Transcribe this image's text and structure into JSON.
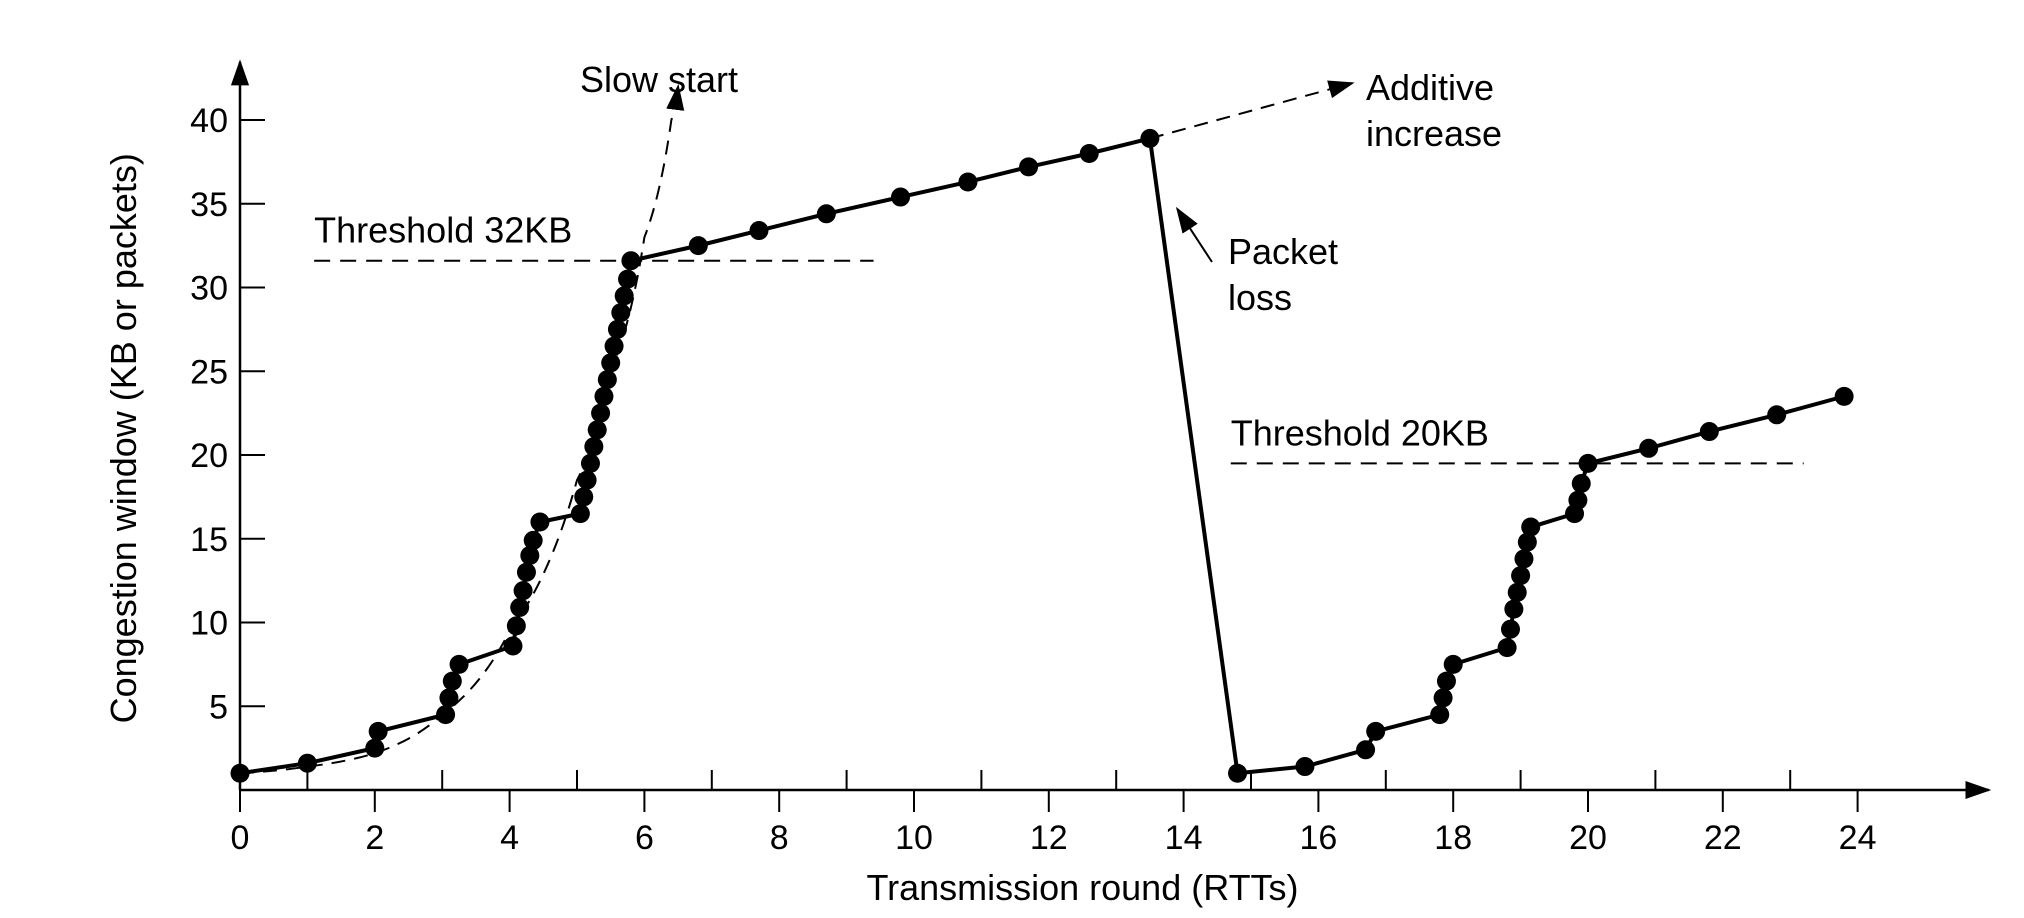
{
  "chart_data": {
    "type": "line",
    "xlabel": "Transmission round (RTTs)",
    "ylabel": "Congestion window (KB or packets)",
    "xlim": [
      0,
      25.5
    ],
    "ylim": [
      0,
      43
    ],
    "x_ticks": [
      0,
      2,
      4,
      6,
      8,
      10,
      12,
      14,
      16,
      18,
      20,
      22,
      24
    ],
    "x_minor_ticks": [
      1,
      3,
      5,
      7,
      9,
      11,
      13,
      15,
      17,
      19,
      21,
      23
    ],
    "y_ticks": [
      5,
      10,
      15,
      20,
      25,
      30,
      35,
      40
    ],
    "grid": false,
    "series": [
      {
        "points": [
          [
            0,
            1
          ],
          [
            1,
            1.6
          ],
          [
            2,
            2.5
          ],
          [
            2.05,
            3.5
          ],
          [
            3.05,
            4.5
          ],
          [
            3.1,
            5.5
          ],
          [
            3.15,
            6.5
          ],
          [
            3.25,
            7.5
          ],
          [
            4.05,
            8.6
          ],
          [
            4.1,
            9.8
          ],
          [
            4.15,
            10.9
          ],
          [
            4.2,
            11.9
          ],
          [
            4.25,
            13
          ],
          [
            4.3,
            14
          ],
          [
            4.35,
            14.9
          ],
          [
            4.45,
            16
          ],
          [
            5.05,
            16.5
          ],
          [
            5.1,
            17.5
          ],
          [
            5.15,
            18.5
          ],
          [
            5.2,
            19.5
          ],
          [
            5.25,
            20.5
          ],
          [
            5.3,
            21.5
          ],
          [
            5.35,
            22.5
          ],
          [
            5.4,
            23.5
          ],
          [
            5.45,
            24.5
          ],
          [
            5.5,
            25.5
          ],
          [
            5.55,
            26.5
          ],
          [
            5.6,
            27.5
          ],
          [
            5.65,
            28.5
          ],
          [
            5.7,
            29.5
          ],
          [
            5.75,
            30.5
          ],
          [
            5.8,
            31.6
          ],
          [
            6.8,
            32.5
          ],
          [
            7.7,
            33.4
          ],
          [
            8.7,
            34.4
          ],
          [
            9.8,
            35.4
          ],
          [
            10.8,
            36.3
          ],
          [
            11.7,
            37.2
          ],
          [
            12.6,
            38
          ],
          [
            13.5,
            38.9
          ],
          [
            14.8,
            1
          ],
          [
            15.8,
            1.4
          ],
          [
            16.7,
            2.4
          ],
          [
            16.85,
            3.5
          ],
          [
            17.8,
            4.5
          ],
          [
            17.85,
            5.5
          ],
          [
            17.9,
            6.5
          ],
          [
            18,
            7.5
          ],
          [
            18.8,
            8.5
          ],
          [
            18.85,
            9.6
          ],
          [
            18.9,
            10.8
          ],
          [
            18.95,
            11.8
          ],
          [
            19,
            12.8
          ],
          [
            19.05,
            13.8
          ],
          [
            19.1,
            14.8
          ],
          [
            19.15,
            15.7
          ],
          [
            19.8,
            16.5
          ],
          [
            19.85,
            17.3
          ],
          [
            19.9,
            18.3
          ],
          [
            20,
            19.5
          ],
          [
            20.9,
            20.4
          ],
          [
            21.8,
            21.4
          ],
          [
            22.8,
            22.4
          ],
          [
            23.8,
            23.5
          ]
        ]
      }
    ],
    "slow_start_curve": {
      "points": [
        [
          0,
          1
        ],
        [
          1,
          1.4
        ],
        [
          2,
          2.2
        ],
        [
          3,
          4.5
        ],
        [
          4,
          9.5
        ],
        [
          5,
          18.5
        ],
        [
          5.5,
          25
        ],
        [
          6,
          33
        ],
        [
          6.4,
          40
        ],
        [
          6.5,
          42
        ]
      ]
    },
    "additive_increase_extension": {
      "from": [
        13.5,
        38.9
      ],
      "to": [
        16.5,
        42.2
      ]
    },
    "thresholds": [
      {
        "label": "Threshold 32KB",
        "y": 31.6,
        "x_from": 1.1,
        "x_to": 9.4
      },
      {
        "label": "Threshold 20KB",
        "y": 19.5,
        "x_from": 14.7,
        "x_to": 23.2
      }
    ],
    "annotations": [
      {
        "id": "slow_start",
        "text": "Slow start",
        "arrow_to": [
          6.5,
          42
        ]
      },
      {
        "id": "additive_increase",
        "text": [
          "Additive",
          "increase"
        ],
        "arrow_to": [
          16.5,
          42.2
        ]
      },
      {
        "id": "packet_loss",
        "text": [
          "Packet",
          "loss"
        ],
        "arrow_to": [
          13.7,
          34.8
        ]
      }
    ]
  }
}
